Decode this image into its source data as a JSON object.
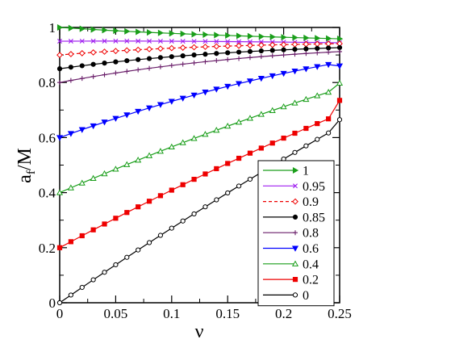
{
  "chart_data": {
    "type": "line",
    "title": "",
    "xlabel": "ν",
    "ylabel_main": "a",
    "ylabel_sub": "f",
    "ylabel_tail": "/M",
    "xlim": [
      0,
      0.25
    ],
    "ylim": [
      0,
      1
    ],
    "x_ticks": [
      0,
      0.05,
      0.1,
      0.15,
      0.2,
      0.25
    ],
    "x_tick_labels": [
      "0",
      "0.05",
      "0.1",
      "0.15",
      "0.2",
      "0.25"
    ],
    "y_ticks": [
      0,
      0.2,
      0.4,
      0.6,
      0.8,
      1
    ],
    "y_tick_labels": [
      "0",
      "0.2",
      "0.4",
      "0.6",
      "0.8",
      "1"
    ],
    "grid": false,
    "legend_position": "bottom-right",
    "x": [
      0,
      0.01,
      0.02,
      0.03,
      0.04,
      0.05,
      0.06,
      0.07,
      0.08,
      0.09,
      0.1,
      0.11,
      0.12,
      0.13,
      0.14,
      0.15,
      0.16,
      0.17,
      0.18,
      0.19,
      0.2,
      0.21,
      0.22,
      0.23,
      0.24,
      0.25
    ],
    "series": [
      {
        "name": "1",
        "color": "#1a9e1a",
        "marker": "triangle-right",
        "filled": true,
        "dashed": false,
        "values": [
          1.0,
          0.9977,
          0.9951,
          0.9926,
          0.9902,
          0.988,
          0.9859,
          0.9839,
          0.982,
          0.9802,
          0.9785,
          0.9769,
          0.9753,
          0.9738,
          0.9723,
          0.9709,
          0.9695,
          0.9682,
          0.9669,
          0.9656,
          0.9644,
          0.9632,
          0.962,
          0.9609,
          0.9598,
          0.9587
        ]
      },
      {
        "name": "0.95",
        "color": "#a020f0",
        "marker": "x",
        "filled": false,
        "dashed": false,
        "values": [
          0.95,
          0.9502,
          0.9503,
          0.9504,
          0.9505,
          0.9505,
          0.9505,
          0.9504,
          0.9503,
          0.9502,
          0.95,
          0.9498,
          0.9496,
          0.9493,
          0.949,
          0.9487,
          0.9484,
          0.948,
          0.9476,
          0.9472,
          0.9468,
          0.9463,
          0.9458,
          0.9453,
          0.9448,
          0.9443
        ]
      },
      {
        "name": "0.9",
        "color": "#ee0000",
        "marker": "diamond",
        "filled": false,
        "dashed": true,
        "values": [
          0.9,
          0.9033,
          0.9064,
          0.9093,
          0.912,
          0.9145,
          0.9168,
          0.919,
          0.9211,
          0.923,
          0.9248,
          0.9265,
          0.9281,
          0.9296,
          0.931,
          0.9323,
          0.9335,
          0.9346,
          0.9357,
          0.9367,
          0.9376,
          0.9385,
          0.9393,
          0.94,
          0.9407,
          0.9413
        ]
      },
      {
        "name": "0.85",
        "color": "#000000",
        "marker": "circle",
        "filled": true,
        "dashed": false,
        "values": [
          0.85,
          0.8556,
          0.8609,
          0.8659,
          0.8706,
          0.875,
          0.8792,
          0.8832,
          0.8869,
          0.8905,
          0.8938,
          0.897,
          0.9,
          0.9028,
          0.9055,
          0.908,
          0.9104,
          0.9127,
          0.9148,
          0.9168,
          0.9187,
          0.9205,
          0.9222,
          0.9238,
          0.9253,
          0.9267
        ]
      },
      {
        "name": "0.8",
        "color": "#6a1f6a",
        "marker": "plus",
        "filled": false,
        "dashed": false,
        "values": [
          0.8,
          0.8075,
          0.8147,
          0.8216,
          0.8282,
          0.8345,
          0.8405,
          0.8462,
          0.8517,
          0.8569,
          0.8619,
          0.8667,
          0.8712,
          0.8755,
          0.8796,
          0.8835,
          0.8872,
          0.8907,
          0.894,
          0.8971,
          0.9,
          0.9028,
          0.9054,
          0.9078,
          0.9101,
          0.9122
        ]
      },
      {
        "name": "0.6",
        "color": "#0000ff",
        "marker": "triangle-down",
        "filled": true,
        "dashed": false,
        "values": [
          0.6,
          0.6145,
          0.6287,
          0.6426,
          0.6562,
          0.6695,
          0.6825,
          0.6952,
          0.7076,
          0.7197,
          0.7315,
          0.743,
          0.7542,
          0.7651,
          0.7757,
          0.786,
          0.796,
          0.8057,
          0.8151,
          0.8242,
          0.833,
          0.8415,
          0.8497,
          0.8576,
          0.8652,
          0.86
        ]
      },
      {
        "name": "0.4",
        "color": "#1a9e1a",
        "marker": "triangle-up",
        "filled": false,
        "dashed": false,
        "values": [
          0.4,
          0.4175,
          0.4348,
          0.4519,
          0.4688,
          0.4855,
          0.502,
          0.5183,
          0.5344,
          0.5503,
          0.566,
          0.5815,
          0.5968,
          0.6119,
          0.6268,
          0.6415,
          0.656,
          0.6703,
          0.6844,
          0.6983,
          0.712,
          0.7255,
          0.7388,
          0.7519,
          0.7648,
          0.798
        ]
      },
      {
        "name": "0.2",
        "color": "#ee0000",
        "marker": "square",
        "filled": true,
        "dashed": false,
        "values": [
          0.2,
          0.2218,
          0.2434,
          0.2648,
          0.286,
          0.307,
          0.3278,
          0.3484,
          0.3688,
          0.389,
          0.409,
          0.4288,
          0.4484,
          0.4678,
          0.487,
          0.506,
          0.5248,
          0.5434,
          0.5618,
          0.58,
          0.598,
          0.6158,
          0.6334,
          0.6508,
          0.668,
          0.735
        ]
      },
      {
        "name": "0",
        "color": "#000000",
        "marker": "circle",
        "filled": false,
        "dashed": false,
        "values": [
          0.0,
          0.028,
          0.0558,
          0.0834,
          0.1108,
          0.138,
          0.165,
          0.1918,
          0.2184,
          0.2448,
          0.271,
          0.297,
          0.3228,
          0.3484,
          0.3738,
          0.399,
          0.424,
          0.4488,
          0.4734,
          0.4978,
          0.522,
          0.546,
          0.5698,
          0.5934,
          0.6168,
          0.665
        ]
      }
    ]
  }
}
